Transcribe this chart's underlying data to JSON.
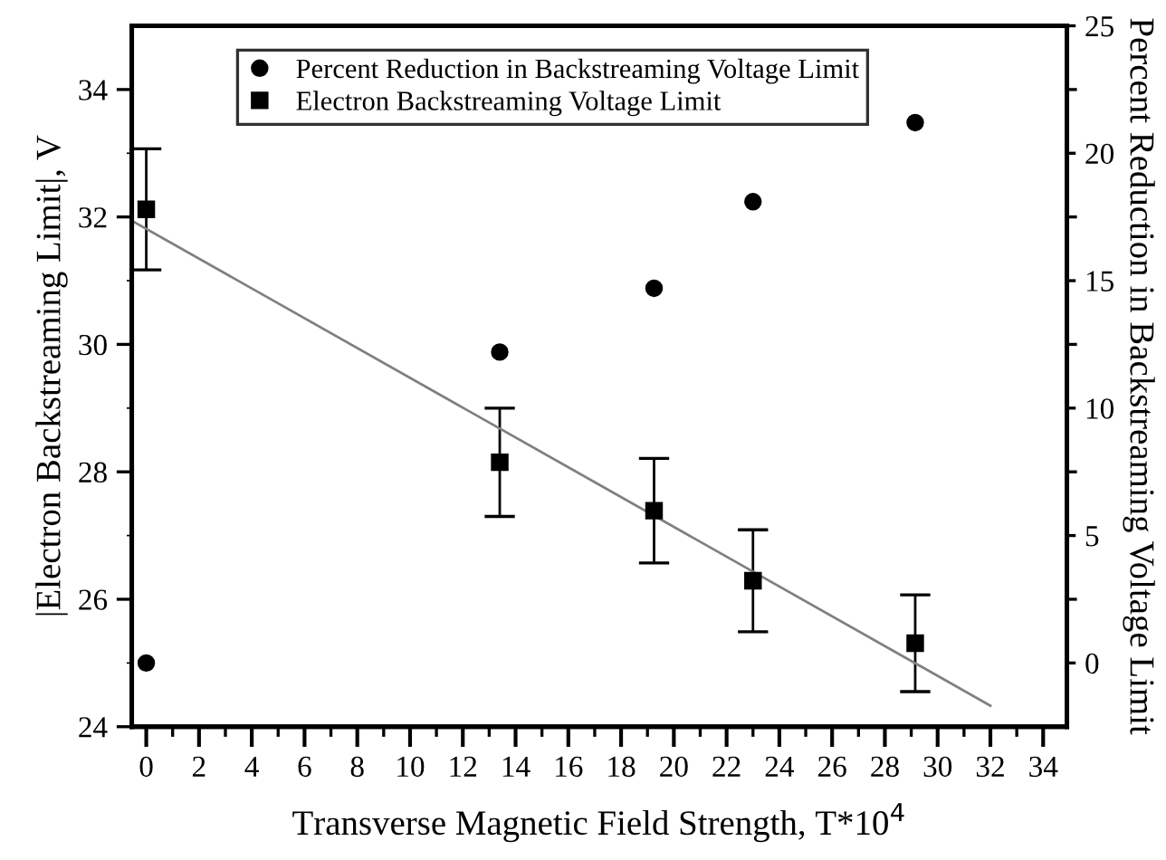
{
  "chart_data": {
    "type": "scatter",
    "xlabel": "Transverse Magnetic Field Strength, T*10$^{4}$",
    "ylabel": "|Electron Backstreaming Limit|, V",
    "y2label": "Percent Reduction in Backstreaming Voltage Limit",
    "x": [
      0,
      13.4,
      19.25,
      23.0,
      29.15
    ],
    "series": [
      {
        "name": "Percent Reduction in Backstreaming Voltage Limit",
        "axis": "y2",
        "marker": "circle",
        "color": "#000000",
        "values": [
          0,
          12.2,
          14.7,
          18.1,
          21.2
        ]
      },
      {
        "name": "Electron Backstreaming Voltage Limit",
        "axis": "y",
        "marker": "square",
        "color": "#000000",
        "values": [
          32.12,
          28.15,
          27.39,
          26.29,
          25.31
        ],
        "errors": [
          0.95,
          0.85,
          0.82,
          0.8,
          0.76
        ]
      },
      {
        "type": "line",
        "axis": "y",
        "color": "#808080",
        "x": [
          -0.5,
          32.0
        ],
        "values": [
          31.93,
          24.33
        ]
      }
    ],
    "xlim": [
      -0.55,
      34.9
    ],
    "ylim": [
      24,
      35
    ],
    "y2lim": [
      -2.5,
      25
    ],
    "xticks": [
      0,
      {
        "value": 1,
        "label": null
      },
      2,
      {
        "value": 3,
        "label": null
      },
      4,
      {
        "value": 5,
        "label": null
      },
      6,
      {
        "value": 7,
        "label": null
      },
      8,
      {
        "value": 9,
        "label": null
      },
      10,
      {
        "value": 11,
        "label": null
      },
      12,
      {
        "value": 13,
        "label": null
      },
      14,
      {
        "value": 15,
        "label": null
      },
      16,
      {
        "value": 17,
        "label": null
      },
      18,
      {
        "value": 19,
        "label": null
      },
      20,
      {
        "value": 21,
        "label": null
      },
      22,
      {
        "value": 23,
        "label": null
      },
      24,
      {
        "value": 25,
        "label": null
      },
      26,
      {
        "value": 27,
        "label": null
      },
      28,
      {
        "value": 29,
        "label": null
      },
      30,
      {
        "value": 31,
        "label": null
      },
      32,
      {
        "value": 33,
        "label": null
      },
      34
    ],
    "yticks": [
      24,
      {
        "value": 25,
        "label": null
      },
      26,
      {
        "value": 27,
        "label": null
      },
      28,
      {
        "value": 29,
        "label": null
      },
      30,
      {
        "value": 31,
        "label": null
      },
      32,
      {
        "value": 33,
        "label": null
      },
      34
    ],
    "y2ticks": [
      0,
      {
        "value": 2.5,
        "label": null
      },
      5,
      {
        "value": 7.5,
        "label": null
      },
      10,
      {
        "value": 12.5,
        "label": null
      },
      15,
      {
        "value": 17.5,
        "label": null
      },
      20,
      {
        "value": 22.5,
        "label": null
      },
      25
    ],
    "legend": "top",
    "grid": false
  }
}
